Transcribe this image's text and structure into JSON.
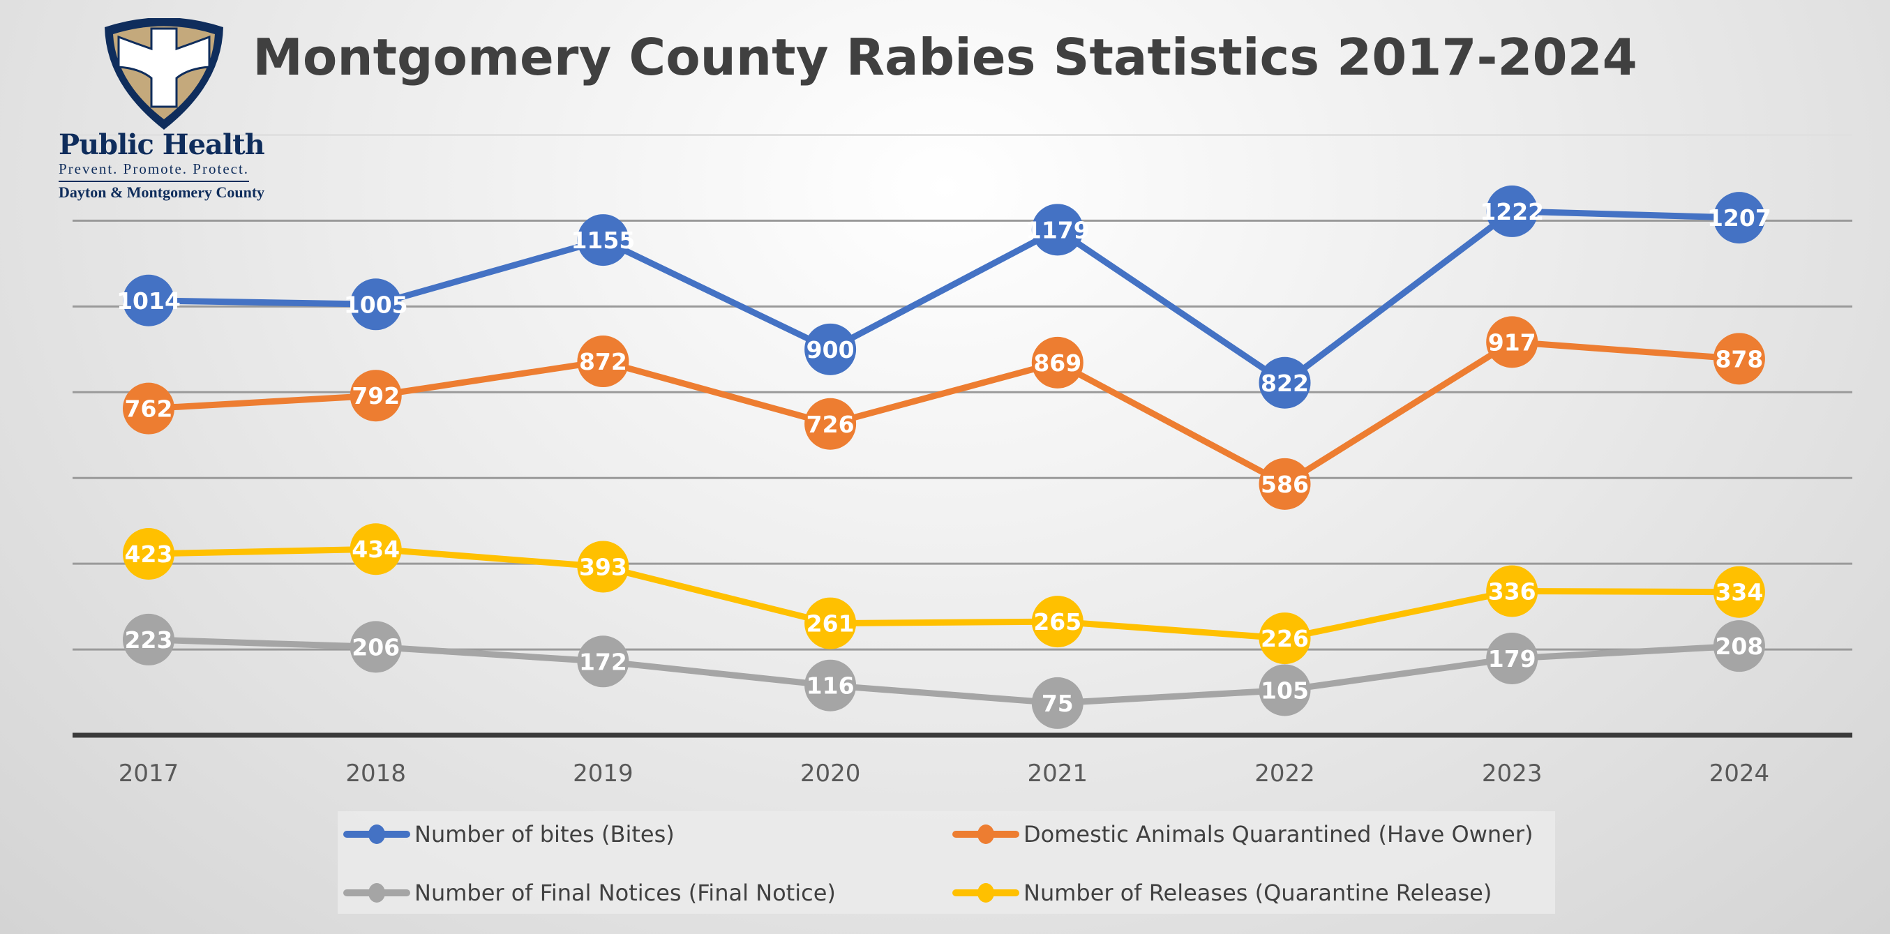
{
  "logo": {
    "name": "Public Health",
    "tagline": "Prevent. Promote. Protect.",
    "region": "Dayton & Montgomery County"
  },
  "chart_data": {
    "type": "line",
    "title": "Montgomery County Rabies Statistics 2017-2024",
    "xlabel": "",
    "ylabel": "",
    "categories": [
      "2017",
      "2018",
      "2019",
      "2020",
      "2021",
      "2022",
      "2023",
      "2024"
    ],
    "ylim": [
      0,
      1400
    ],
    "y_major_unit": 200,
    "y_tick_labels_shown": false,
    "grid": true,
    "legend_position": "bottom",
    "data_labels": true,
    "series": [
      {
        "name": "Number of bites (Bites)",
        "color": "#4472C4",
        "values": [
          1014,
          1005,
          1155,
          900,
          1179,
          822,
          1222,
          1207
        ]
      },
      {
        "name": "Domestic Animals Quarantined (Have Owner)",
        "color": "#ED7D31",
        "values": [
          762,
          792,
          872,
          726,
          869,
          586,
          917,
          878
        ]
      },
      {
        "name": "Number of Final Notices (Final Notice)",
        "color": "#A5A5A5",
        "values": [
          223,
          206,
          172,
          116,
          75,
          105,
          179,
          208
        ]
      },
      {
        "name": "Number of Releases (Quarantine Release)",
        "color": "#FFC000",
        "values": [
          423,
          434,
          393,
          261,
          265,
          226,
          336,
          334
        ]
      }
    ]
  }
}
